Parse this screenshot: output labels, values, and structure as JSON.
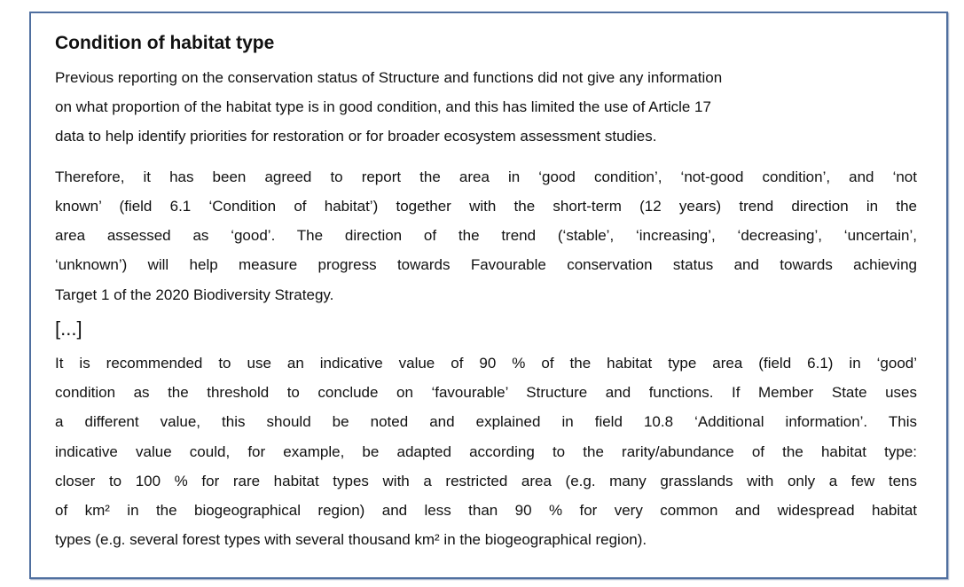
{
  "title": "Condition of habitat type",
  "paragraphs": [
    {
      "lines": [
        "Previous reporting on the conservation status of Structure and functions did not give any information",
        "on what proportion of the habitat type is in good condition, and this has limited the use of Article 17",
        "data to help identify priorities for restoration or for broader ecosystem assessment studies."
      ]
    },
    {
      "lines": [
        "Therefore, it has been agreed to report the area in ‘good condition’, ‘not-good condition’, and ‘not",
        "known’ (field 6.1 ‘Condition of habitat’) together with the short-term (12 years) trend direction in the",
        "area assessed as ‘good’. The direction of the trend (‘stable’, ‘increasing’, ‘decreasing’, ‘uncertain’,",
        "‘unknown’) will help measure progress towards Favourable conservation status and towards achieving",
        "Target 1 of the 2020 Biodiversity Strategy."
      ]
    },
    {
      "lines": [
        "It is recommended to use an indicative value of 90 % of the habitat type area (field 6.1) in ‘good’",
        "condition as the threshold to conclude on ‘favourable’ Structure and functions. If Member State uses",
        "a different value, this should be noted and explained in field 10.8 ‘Additional information’. This",
        "indicative value could, for example, be adapted according to the rarity/abundance of the habitat type:",
        "closer to 100 % for rare habitat types with a restricted area (e.g. many grasslands with only a few tens",
        "of km² in the biogeographical region) and less than 90 % for very common and widespread habitat",
        "types (e.g. several forest types with several thousand km² in the biogeographical region)."
      ]
    }
  ],
  "ellipsis": "[...]"
}
